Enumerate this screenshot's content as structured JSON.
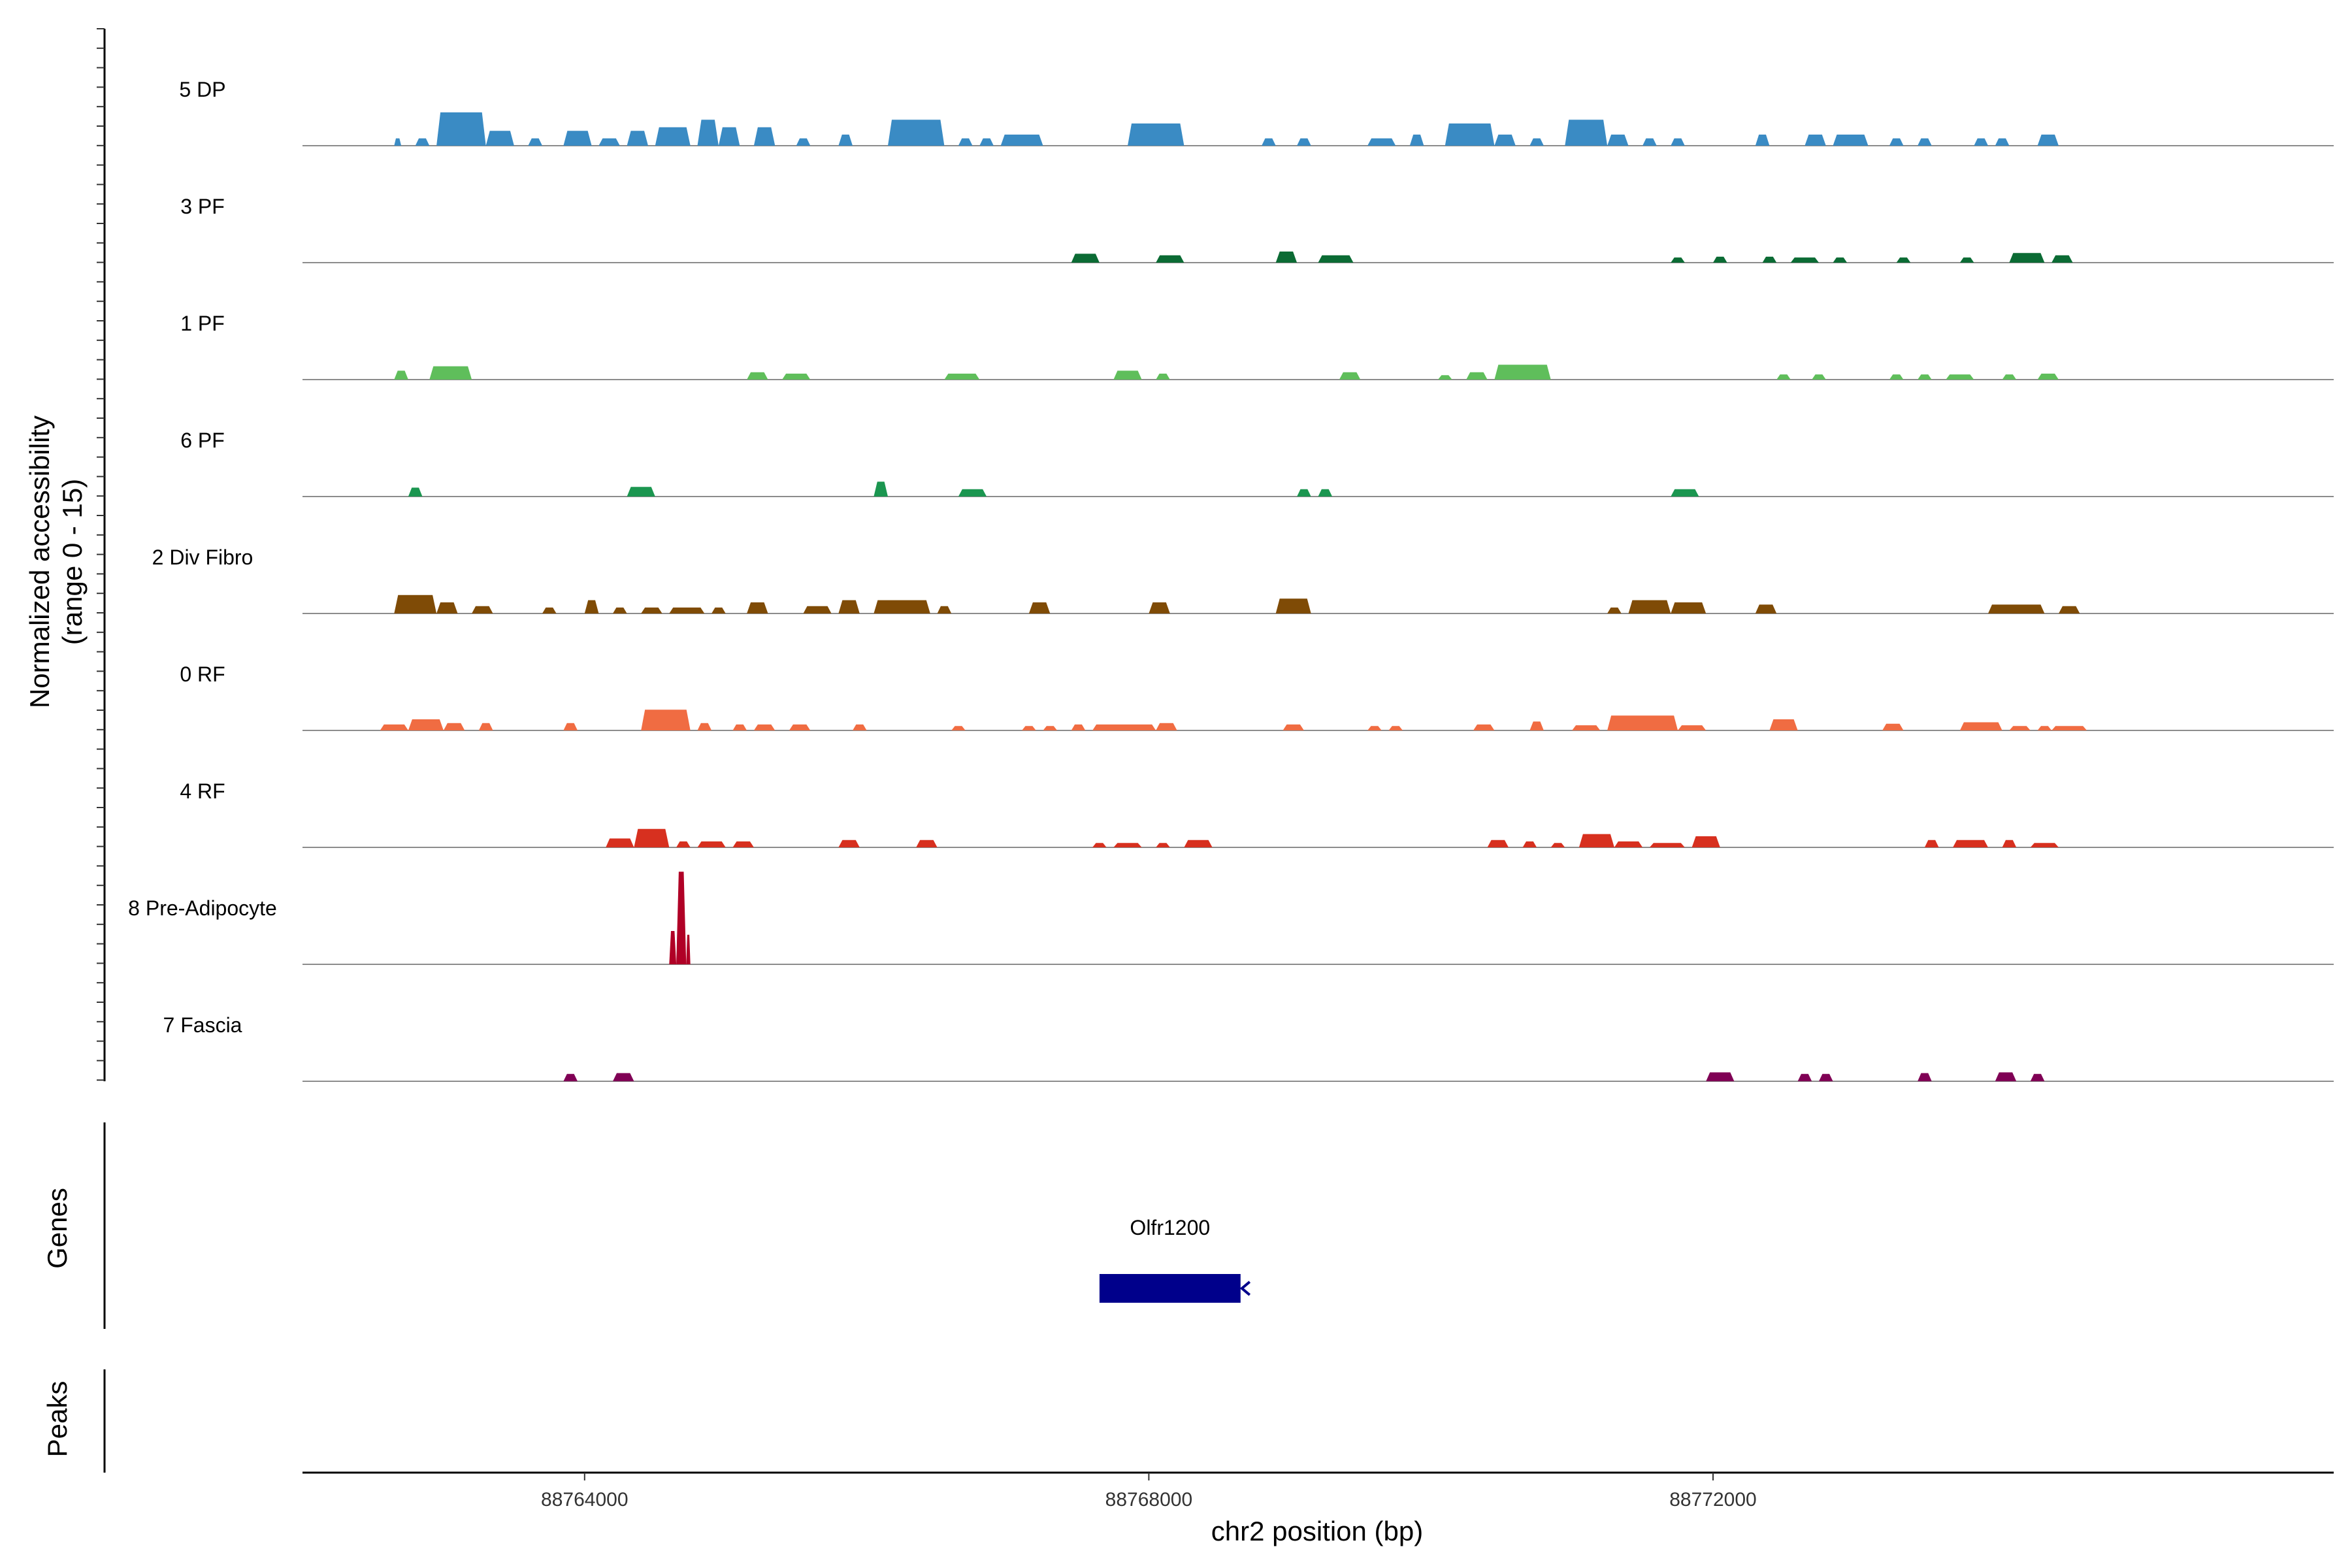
{
  "chart_data": {
    "type": "coverage",
    "ylabel_line1": "Normalized accessibility",
    "ylabel_line2": "(range 0 - 15)",
    "xlabel": "chr2 position (bp)",
    "xlim": [
      88762000,
      88776400
    ],
    "ylim": [
      0,
      15
    ],
    "xticks": [
      88764000,
      88768000,
      88772000
    ],
    "xtick_labels": [
      "88764000",
      "88768000",
      "88772000"
    ],
    "genes_label": "Genes",
    "peaks_label": "Peaks",
    "gene": {
      "name": "Olfr1200",
      "start": 88767650,
      "end": 88768650,
      "strand": "-",
      "color": "#00008B"
    },
    "tracks": [
      {
        "name": "5 DP",
        "color": "#3A8BC4",
        "peaks": [
          [
            88762650,
            88762700,
            1
          ],
          [
            88762800,
            88762900,
            1
          ],
          [
            88762950,
            88763300,
            4.5
          ],
          [
            88763300,
            88763500,
            2
          ],
          [
            88763600,
            88763700,
            1
          ],
          [
            88763850,
            88764050,
            2
          ],
          [
            88764100,
            88764250,
            1
          ],
          [
            88764300,
            88764450,
            2
          ],
          [
            88764500,
            88764750,
            2.5
          ],
          [
            88764800,
            88764950,
            3.5
          ],
          [
            88764950,
            88765100,
            2.5
          ],
          [
            88765200,
            88765350,
            2.5
          ],
          [
            88765500,
            88765600,
            1
          ],
          [
            88765800,
            88765900,
            1.5
          ],
          [
            88766150,
            88766550,
            3.5
          ],
          [
            88766650,
            88766750,
            1
          ],
          [
            88766800,
            88766900,
            1
          ],
          [
            88766950,
            88767250,
            1.5
          ],
          [
            88767850,
            88768250,
            3
          ],
          [
            88768800,
            88768900,
            1
          ],
          [
            88769050,
            88769150,
            1
          ],
          [
            88769550,
            88769750,
            1
          ],
          [
            88769850,
            88769950,
            1.5
          ],
          [
            88770100,
            88770450,
            3
          ],
          [
            88770450,
            88770600,
            1.5
          ],
          [
            88770700,
            88770800,
            1
          ],
          [
            88770950,
            88771250,
            3.5
          ],
          [
            88771250,
            88771400,
            1.5
          ],
          [
            88771500,
            88771600,
            1
          ],
          [
            88771700,
            88771800,
            1
          ],
          [
            88772300,
            88772400,
            1.5
          ],
          [
            88772650,
            88772800,
            1.5
          ],
          [
            88772850,
            88773100,
            1.5
          ],
          [
            88773250,
            88773350,
            1
          ],
          [
            88773450,
            88773550,
            1
          ],
          [
            88773850,
            88773950,
            1
          ],
          [
            88774000,
            88774100,
            1
          ],
          [
            88774300,
            88774450,
            1.5
          ]
        ]
      },
      {
        "name": "3 PF",
        "color": "#0B6B34",
        "peaks": [
          [
            88767450,
            88767650,
            1.2
          ],
          [
            88768050,
            88768250,
            1
          ],
          [
            88768900,
            88769050,
            1.5
          ],
          [
            88769200,
            88769450,
            1
          ],
          [
            88771700,
            88771800,
            0.7
          ],
          [
            88772000,
            88772100,
            0.8
          ],
          [
            88772350,
            88772450,
            0.8
          ],
          [
            88772550,
            88772750,
            0.7
          ],
          [
            88772850,
            88772950,
            0.7
          ],
          [
            88773300,
            88773400,
            0.7
          ],
          [
            88773750,
            88773850,
            0.7
          ],
          [
            88774100,
            88774350,
            1.3
          ],
          [
            88774400,
            88774550,
            1
          ]
        ]
      },
      {
        "name": "1 PF",
        "color": "#5FBE5B",
        "peaks": [
          [
            88762650,
            88762750,
            1.2
          ],
          [
            88762900,
            88763200,
            1.8
          ],
          [
            88765150,
            88765300,
            1
          ],
          [
            88765400,
            88765600,
            0.8
          ],
          [
            88766550,
            88766800,
            0.8
          ],
          [
            88767750,
            88767950,
            1.2
          ],
          [
            88768050,
            88768150,
            0.8
          ],
          [
            88769350,
            88769500,
            1
          ],
          [
            88770050,
            88770150,
            0.6
          ],
          [
            88770250,
            88770400,
            1
          ],
          [
            88770450,
            88770850,
            2
          ],
          [
            88772450,
            88772550,
            0.7
          ],
          [
            88772700,
            88772800,
            0.7
          ],
          [
            88773250,
            88773350,
            0.7
          ],
          [
            88773450,
            88773550,
            0.7
          ],
          [
            88773650,
            88773850,
            0.7
          ],
          [
            88774050,
            88774150,
            0.7
          ],
          [
            88774300,
            88774450,
            0.8
          ]
        ]
      },
      {
        "name": "6 PF",
        "color": "#1B9650",
        "peaks": [
          [
            88762750,
            88762850,
            1.2
          ],
          [
            88764300,
            88764500,
            1.3
          ],
          [
            88766050,
            88766150,
            2
          ],
          [
            88766650,
            88766850,
            1
          ],
          [
            88769050,
            88769150,
            1
          ],
          [
            88769200,
            88769300,
            1
          ],
          [
            88771700,
            88771900,
            1
          ]
        ]
      },
      {
        "name": "2 Div Fibro",
        "color": "#7F4B06",
        "peaks": [
          [
            88762650,
            88762950,
            2.5
          ],
          [
            88762950,
            88763100,
            1.5
          ],
          [
            88763200,
            88763350,
            1
          ],
          [
            88763700,
            88763800,
            0.8
          ],
          [
            88764000,
            88764100,
            1.8
          ],
          [
            88764200,
            88764300,
            0.8
          ],
          [
            88764400,
            88764550,
            0.8
          ],
          [
            88764600,
            88764850,
            0.8
          ],
          [
            88764900,
            88765000,
            0.8
          ],
          [
            88765150,
            88765300,
            1.5
          ],
          [
            88765550,
            88765750,
            1
          ],
          [
            88765800,
            88765950,
            1.8
          ],
          [
            88766050,
            88766450,
            1.8
          ],
          [
            88766500,
            88766600,
            1
          ],
          [
            88767150,
            88767300,
            1.5
          ],
          [
            88768000,
            88768150,
            1.5
          ],
          [
            88768900,
            88769150,
            2
          ],
          [
            88771250,
            88771350,
            0.8
          ],
          [
            88771400,
            88771700,
            1.8
          ],
          [
            88771700,
            88771950,
            1.5
          ],
          [
            88772300,
            88772450,
            1.2
          ],
          [
            88773950,
            88774350,
            1.2
          ],
          [
            88774450,
            88774600,
            1
          ]
        ]
      },
      {
        "name": "0 RF",
        "color": "#F06C42",
        "peaks": [
          [
            88762550,
            88762750,
            0.8
          ],
          [
            88762750,
            88763000,
            1.5
          ],
          [
            88763000,
            88763150,
            1
          ],
          [
            88763250,
            88763350,
            1
          ],
          [
            88763850,
            88763950,
            1
          ],
          [
            88764400,
            88764750,
            2.8
          ],
          [
            88764800,
            88764900,
            1
          ],
          [
            88765050,
            88765150,
            0.8
          ],
          [
            88765200,
            88765350,
            0.8
          ],
          [
            88765450,
            88765600,
            0.8
          ],
          [
            88765900,
            88766000,
            0.8
          ],
          [
            88766600,
            88766700,
            0.6
          ],
          [
            88767100,
            88767200,
            0.6
          ],
          [
            88767250,
            88767350,
            0.6
          ],
          [
            88767450,
            88767550,
            0.8
          ],
          [
            88767600,
            88768050,
            0.8
          ],
          [
            88768050,
            88768200,
            1
          ],
          [
            88768950,
            88769100,
            0.8
          ],
          [
            88769550,
            88769650,
            0.6
          ],
          [
            88769700,
            88769800,
            0.6
          ],
          [
            88770300,
            88770450,
            0.8
          ],
          [
            88770700,
            88770800,
            1.2
          ],
          [
            88771000,
            88771200,
            0.7
          ],
          [
            88771250,
            88771750,
            2
          ],
          [
            88771750,
            88771950,
            0.7
          ],
          [
            88772400,
            88772600,
            1.5
          ],
          [
            88773200,
            88773350,
            0.9
          ],
          [
            88773750,
            88774050,
            1.1
          ],
          [
            88774100,
            88774250,
            0.6
          ],
          [
            88774300,
            88774400,
            0.6
          ],
          [
            88774400,
            88774650,
            0.6
          ]
        ]
      },
      {
        "name": "4 RF",
        "color": "#D7301F",
        "peaks": [
          [
            88764150,
            88764350,
            1.2
          ],
          [
            88764350,
            88764600,
            2.5
          ],
          [
            88764650,
            88764750,
            0.8
          ],
          [
            88764800,
            88765000,
            0.8
          ],
          [
            88765050,
            88765200,
            0.8
          ],
          [
            88765800,
            88765950,
            1
          ],
          [
            88766350,
            88766500,
            1
          ],
          [
            88767600,
            88767700,
            0.6
          ],
          [
            88767750,
            88767950,
            0.6
          ],
          [
            88768050,
            88768150,
            0.6
          ],
          [
            88768250,
            88768450,
            1
          ],
          [
            88770400,
            88770550,
            1
          ],
          [
            88770650,
            88770750,
            0.8
          ],
          [
            88770850,
            88770950,
            0.6
          ],
          [
            88771050,
            88771300,
            1.8
          ],
          [
            88771300,
            88771500,
            0.8
          ],
          [
            88771550,
            88771800,
            0.6
          ],
          [
            88771850,
            88772050,
            1.5
          ],
          [
            88773500,
            88773600,
            1
          ],
          [
            88773700,
            88773950,
            1
          ],
          [
            88774050,
            88774150,
            1
          ],
          [
            88774250,
            88774450,
            0.6
          ]
        ]
      },
      {
        "name": "8 Pre-Adipocyte",
        "color": "#B00026",
        "peaks": [
          [
            88764600,
            88764650,
            4.5
          ],
          [
            88764650,
            88764720,
            12.5
          ],
          [
            88764720,
            88764750,
            4
          ]
        ]
      },
      {
        "name": "7 Fascia",
        "color": "#800055",
        "peaks": [
          [
            88763850,
            88763950,
            1
          ],
          [
            88764200,
            88764350,
            1.1
          ],
          [
            88771950,
            88772150,
            1.2
          ],
          [
            88772600,
            88772700,
            1
          ],
          [
            88772750,
            88772850,
            1
          ],
          [
            88773450,
            88773550,
            1.1
          ],
          [
            88774000,
            88774150,
            1.2
          ],
          [
            88774250,
            88774350,
            1
          ]
        ]
      }
    ]
  }
}
